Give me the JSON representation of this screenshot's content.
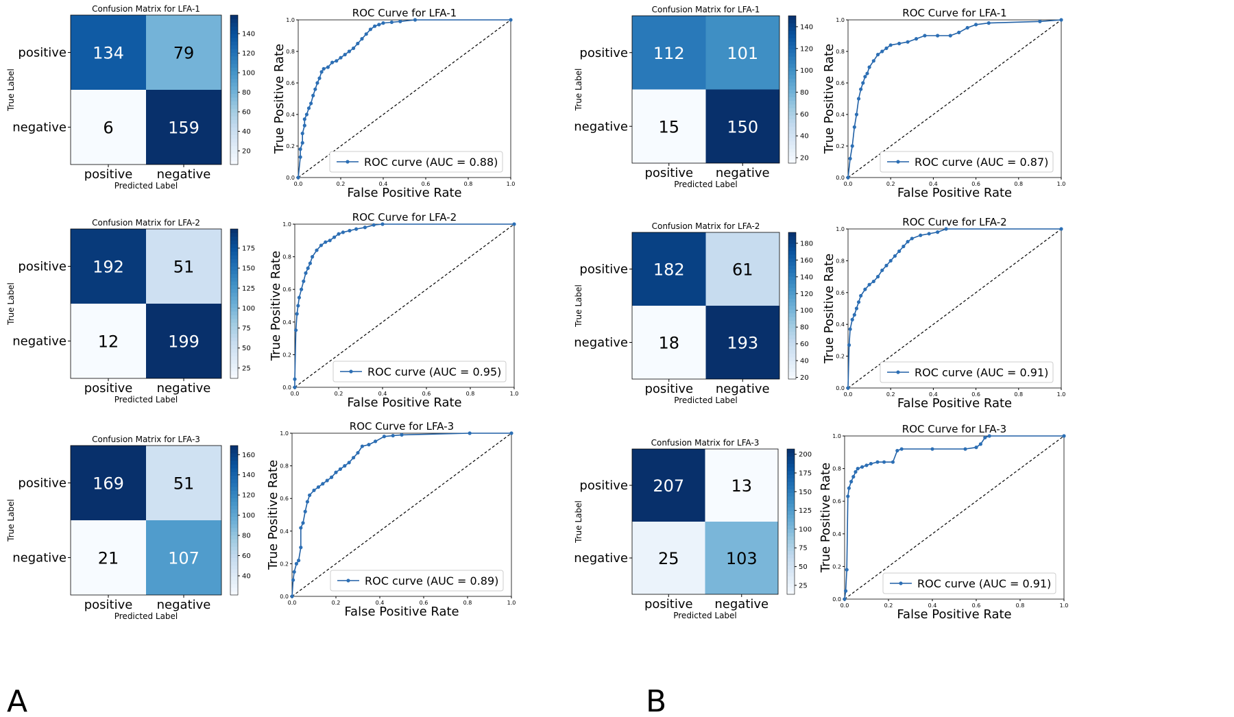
{
  "figure": {
    "panel_labels": [
      "A",
      "B"
    ],
    "colors": {
      "line": "#1f5fa5",
      "marker": "#2c6fb5",
      "diagonal": "#000000",
      "cmap_low": "#f7fbff",
      "cmap_high": "#08306b",
      "text_dark": "#000000",
      "text_light": "#ffffff"
    }
  },
  "chart_data": [
    {
      "type": "heatmap",
      "id": "A-cm1",
      "title": "Confusion Matrix for LFA-1",
      "xlabel": "Predicted Label",
      "ylabel": "True Label",
      "xticklabels": [
        "positive",
        "negative"
      ],
      "yticklabels": [
        "positive",
        "negative"
      ],
      "values": [
        [
          134,
          79
        ],
        [
          6,
          159
        ]
      ],
      "colorbar": {
        "range": [
          6,
          159
        ],
        "ticks": [
          20,
          40,
          60,
          80,
          100,
          120,
          140
        ]
      }
    },
    {
      "type": "line",
      "id": "A-roc1",
      "title": "ROC Curve for LFA-1",
      "xlabel": "False Positive Rate",
      "ylabel": "True Positive Rate",
      "xlim": [
        0,
        1
      ],
      "ylim": [
        0,
        1
      ],
      "ticks": [
        "0.0",
        "0.2",
        "0.4",
        "0.6",
        "0.8",
        "1.0"
      ],
      "legend": "ROC curve (AUC = 0.88)",
      "legend_position": "lower right",
      "x": [
        0,
        0.01,
        0.01,
        0.02,
        0.02,
        0.03,
        0.03,
        0.04,
        0.05,
        0.06,
        0.07,
        0.08,
        0.09,
        0.1,
        0.11,
        0.12,
        0.14,
        0.16,
        0.18,
        0.2,
        0.22,
        0.24,
        0.26,
        0.28,
        0.3,
        0.32,
        0.34,
        0.36,
        0.38,
        0.4,
        0.44,
        0.48,
        0.55,
        1
      ],
      "y": [
        0,
        0.13,
        0.18,
        0.22,
        0.28,
        0.33,
        0.37,
        0.4,
        0.44,
        0.47,
        0.52,
        0.56,
        0.6,
        0.63,
        0.67,
        0.69,
        0.7,
        0.73,
        0.74,
        0.76,
        0.78,
        0.8,
        0.82,
        0.85,
        0.88,
        0.91,
        0.94,
        0.96,
        0.97,
        0.98,
        0.985,
        0.99,
        1.0,
        1.0
      ]
    },
    {
      "type": "heatmap",
      "id": "A-cm2",
      "title": "Confusion Matrix for LFA-2",
      "xlabel": "Predicted Label",
      "ylabel": "True Label",
      "xticklabels": [
        "positive",
        "negative"
      ],
      "yticklabels": [
        "positive",
        "negative"
      ],
      "values": [
        [
          192,
          51
        ],
        [
          12,
          199
        ]
      ],
      "colorbar": {
        "range": [
          12,
          199
        ],
        "ticks": [
          25,
          50,
          75,
          100,
          125,
          150,
          175
        ]
      }
    },
    {
      "type": "line",
      "id": "A-roc2",
      "title": "ROC Curve for LFA-2",
      "xlabel": "False Positive Rate",
      "ylabel": "True Positive Rate",
      "xlim": [
        0,
        1
      ],
      "ylim": [
        0,
        1
      ],
      "ticks": [
        "0.0",
        "0.2",
        "0.4",
        "0.6",
        "0.8",
        "1.0"
      ],
      "legend": "ROC curve (AUC = 0.95)",
      "legend_position": "lower right",
      "x": [
        0,
        0,
        0.005,
        0.01,
        0.015,
        0.02,
        0.03,
        0.04,
        0.05,
        0.06,
        0.07,
        0.08,
        0.1,
        0.12,
        0.14,
        0.16,
        0.18,
        0.2,
        0.22,
        0.25,
        0.28,
        0.32,
        0.36,
        0.4,
        1
      ],
      "y": [
        0,
        0.05,
        0.35,
        0.45,
        0.5,
        0.55,
        0.6,
        0.65,
        0.7,
        0.73,
        0.76,
        0.8,
        0.84,
        0.87,
        0.89,
        0.9,
        0.92,
        0.94,
        0.95,
        0.96,
        0.97,
        0.98,
        0.995,
        1.0,
        1.0
      ]
    },
    {
      "type": "heatmap",
      "id": "A-cm3",
      "title": "Confusion Matrix for LFA-3",
      "xlabel": "Predicted Label",
      "ylabel": "True Label",
      "xticklabels": [
        "positive",
        "negative"
      ],
      "yticklabels": [
        "positive",
        "negative"
      ],
      "values": [
        [
          169,
          51
        ],
        [
          21,
          107
        ]
      ],
      "colorbar": {
        "range": [
          21,
          169
        ],
        "ticks": [
          40,
          60,
          80,
          100,
          120,
          140,
          160
        ]
      }
    },
    {
      "type": "line",
      "id": "A-roc3",
      "title": "ROC Curve for LFA-3",
      "xlabel": "False Positive Rate",
      "ylabel": "True Positive Rate",
      "xlim": [
        0,
        1
      ],
      "ylim": [
        0,
        1
      ],
      "ticks": [
        "0.0",
        "0.2",
        "0.4",
        "0.6",
        "0.8",
        "1.0"
      ],
      "legend": "ROC curve (AUC = 0.89)",
      "legend_position": "lower right",
      "x": [
        0,
        0.005,
        0.01,
        0.02,
        0.03,
        0.04,
        0.04,
        0.05,
        0.06,
        0.07,
        0.08,
        0.1,
        0.12,
        0.14,
        0.16,
        0.18,
        0.2,
        0.22,
        0.24,
        0.26,
        0.28,
        0.3,
        0.32,
        0.35,
        0.38,
        0.42,
        0.46,
        0.5,
        0.81,
        1
      ],
      "y": [
        0,
        0.1,
        0.15,
        0.2,
        0.22,
        0.3,
        0.42,
        0.45,
        0.52,
        0.58,
        0.62,
        0.65,
        0.67,
        0.69,
        0.71,
        0.73,
        0.76,
        0.78,
        0.8,
        0.82,
        0.85,
        0.88,
        0.92,
        0.93,
        0.95,
        0.98,
        0.985,
        0.99,
        1.0,
        1.0
      ]
    },
    {
      "type": "heatmap",
      "id": "B-cm1",
      "title": "Confusion Matrix for LFA-1",
      "xlabel": "Predicted Label",
      "ylabel": "True Label",
      "xticklabels": [
        "positive",
        "negative"
      ],
      "yticklabels": [
        "positive",
        "negative"
      ],
      "values": [
        [
          112,
          101
        ],
        [
          15,
          150
        ]
      ],
      "colorbar": {
        "range": [
          15,
          150
        ],
        "ticks": [
          20,
          40,
          60,
          80,
          100,
          120,
          140
        ]
      }
    },
    {
      "type": "line",
      "id": "B-roc1",
      "title": "ROC Curve for LFA-1",
      "xlabel": "False Positive Rate",
      "ylabel": "True Positive Rate",
      "xlim": [
        0,
        1
      ],
      "ylim": [
        0,
        1
      ],
      "ticks": [
        "0.0",
        "0.2",
        "0.4",
        "0.6",
        "0.8",
        "1.0"
      ],
      "legend": "ROC curve (AUC = 0.87)",
      "legend_position": "lower right",
      "x": [
        0,
        0.01,
        0.02,
        0.03,
        0.04,
        0.05,
        0.06,
        0.07,
        0.08,
        0.09,
        0.1,
        0.12,
        0.14,
        0.16,
        0.18,
        0.2,
        0.24,
        0.28,
        0.32,
        0.36,
        0.42,
        0.48,
        0.52,
        0.56,
        0.6,
        0.66,
        0.9,
        1
      ],
      "y": [
        0,
        0.12,
        0.2,
        0.32,
        0.4,
        0.5,
        0.56,
        0.6,
        0.64,
        0.66,
        0.7,
        0.74,
        0.78,
        0.8,
        0.82,
        0.84,
        0.85,
        0.86,
        0.88,
        0.9,
        0.9,
        0.9,
        0.92,
        0.95,
        0.97,
        0.98,
        0.99,
        1.0
      ]
    },
    {
      "type": "heatmap",
      "id": "B-cm2",
      "title": "Confusion Matrix for LFA-2",
      "xlabel": "Predicted Label",
      "ylabel": "True Label",
      "xticklabels": [
        "positive",
        "negative"
      ],
      "yticklabels": [
        "positive",
        "negative"
      ],
      "values": [
        [
          182,
          61
        ],
        [
          18,
          193
        ]
      ],
      "colorbar": {
        "range": [
          18,
          193
        ],
        "ticks": [
          20,
          40,
          60,
          80,
          100,
          120,
          140,
          160,
          180
        ]
      }
    },
    {
      "type": "line",
      "id": "B-roc2",
      "title": "ROC Curve for LFA-2",
      "xlabel": "False Positive Rate",
      "ylabel": "True Positive Rate",
      "xlim": [
        0,
        1
      ],
      "ylim": [
        0,
        1
      ],
      "ticks": [
        "0.0",
        "0.2",
        "0.4",
        "0.6",
        "0.8",
        "1.0"
      ],
      "legend": "ROC curve (AUC = 0.91)",
      "legend_position": "lower right",
      "x": [
        0,
        0.005,
        0.01,
        0.02,
        0.03,
        0.04,
        0.05,
        0.06,
        0.08,
        0.1,
        0.12,
        0.14,
        0.16,
        0.18,
        0.2,
        0.22,
        0.24,
        0.26,
        0.28,
        0.3,
        0.34,
        0.38,
        0.42,
        0.46,
        1
      ],
      "y": [
        0,
        0.27,
        0.37,
        0.43,
        0.46,
        0.5,
        0.54,
        0.58,
        0.62,
        0.65,
        0.67,
        0.7,
        0.74,
        0.77,
        0.8,
        0.83,
        0.86,
        0.89,
        0.92,
        0.94,
        0.96,
        0.97,
        0.98,
        1.0,
        1.0
      ]
    },
    {
      "type": "heatmap",
      "id": "B-cm3",
      "title": "Confusion Matrix for LFA-3",
      "xlabel": "Predicted Label",
      "ylabel": "True Label",
      "xticklabels": [
        "positive",
        "negative"
      ],
      "yticklabels": [
        "positive",
        "negative"
      ],
      "values": [
        [
          207,
          13
        ],
        [
          25,
          103
        ]
      ],
      "colorbar": {
        "range": [
          13,
          207
        ],
        "ticks": [
          25,
          50,
          75,
          100,
          125,
          150,
          175,
          200
        ]
      }
    },
    {
      "type": "line",
      "id": "B-roc3",
      "title": "ROC Curve for LFA-3",
      "xlabel": "False Positive Rate",
      "ylabel": "True Positive Rate",
      "xlim": [
        0,
        1
      ],
      "ylim": [
        0,
        1
      ],
      "ticks": [
        "0.0",
        "0.2",
        "0.4",
        "0.6",
        "0.8",
        "1.0"
      ],
      "legend": "ROC curve (AUC = 0.91)",
      "legend_position": "lower right",
      "x": [
        0,
        0.005,
        0.01,
        0.015,
        0.02,
        0.03,
        0.04,
        0.05,
        0.06,
        0.08,
        0.1,
        0.12,
        0.15,
        0.18,
        0.22,
        0.24,
        0.26,
        0.4,
        0.55,
        0.6,
        0.62,
        0.64,
        0.66,
        1
      ],
      "y": [
        0,
        0.05,
        0.18,
        0.63,
        0.68,
        0.72,
        0.75,
        0.78,
        0.8,
        0.81,
        0.82,
        0.83,
        0.84,
        0.84,
        0.84,
        0.91,
        0.92,
        0.92,
        0.92,
        0.93,
        0.95,
        0.99,
        1.0,
        1.0
      ]
    }
  ]
}
